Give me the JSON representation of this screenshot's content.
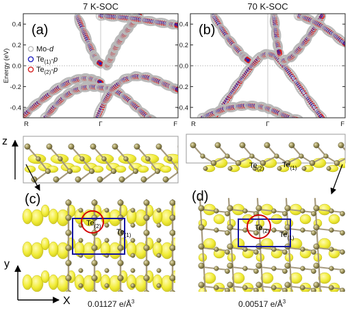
{
  "chart_data": [
    {
      "type": "scatter",
      "title": "7 K-SOC",
      "panel_label": "(a)",
      "ylabel": "Energy (eV)",
      "ylim": [
        -0.5,
        0.5
      ],
      "y_ticks": [
        "0.4",
        "0.2",
        "0.0",
        "-0.2",
        "-0.4"
      ],
      "x_ticks": [
        "R",
        "Γ",
        "F"
      ],
      "legend": [
        {
          "label": "Mo-",
          "label_italic": "d",
          "color": "#b9b9b9"
        },
        {
          "label": "Te",
          "label_sub": "(1)",
          "label_tail": "-",
          "label_italic": "p",
          "color": "#1f1fbf"
        },
        {
          "label": "Te",
          "label_sub": "(2)",
          "label_tail": "-",
          "label_italic": "p",
          "color": "#d62020"
        }
      ],
      "legend_position": "left",
      "bands": [
        {
          "k": [
            -0.3,
            -0.22,
            -0.14,
            -0.08,
            -0.04,
            0.0
          ],
          "E": [
            0.47,
            0.33,
            0.19,
            0.09,
            0.04,
            0.02
          ]
        },
        {
          "k": [
            -1.0,
            -0.85,
            -0.7,
            -0.55,
            -0.4,
            -0.25,
            -0.15,
            -0.06,
            0.0
          ],
          "E": [
            -0.48,
            -0.38,
            -0.29,
            -0.21,
            -0.15,
            -0.12,
            -0.12,
            -0.14,
            -0.16
          ]
        },
        {
          "k": [
            -0.72,
            -0.6,
            -0.48,
            -0.36,
            -0.24,
            -0.12,
            0.0,
            0.12,
            0.24,
            0.36,
            0.48,
            0.6,
            0.72
          ],
          "E": [
            -0.5,
            -0.39,
            -0.3,
            -0.24,
            -0.21,
            -0.2,
            -0.21,
            -0.22,
            -0.26,
            -0.33,
            -0.41,
            -0.49,
            -0.55
          ]
        },
        {
          "k": [
            -0.06,
            0.05,
            0.15,
            0.3,
            0.45,
            0.6,
            0.75,
            0.9,
            1.0
          ],
          "E": [
            -0.52,
            -0.34,
            -0.22,
            -0.13,
            -0.1,
            -0.11,
            -0.15,
            -0.2,
            -0.23
          ]
        },
        {
          "k": [
            0.08,
            0.12,
            0.16,
            0.2,
            0.26,
            0.32,
            0.38,
            0.44,
            0.5
          ],
          "E": [
            0.0,
            0.06,
            0.13,
            0.19,
            0.26,
            0.32,
            0.38,
            0.44,
            0.48
          ]
        },
        {
          "k": [
            0.0,
            0.18,
            0.36,
            0.54,
            0.72,
            0.9,
            1.0
          ],
          "E": [
            0.48,
            0.47,
            0.46,
            0.44,
            0.42,
            0.4,
            0.39
          ]
        }
      ]
    },
    {
      "type": "scatter",
      "title": "70 K-SOC",
      "panel_label": "(b)",
      "ylim": [
        -0.5,
        0.5
      ],
      "y_ticks": [
        "0.4",
        "0.2",
        "0.0",
        "-0.2",
        "-0.4"
      ],
      "x_ticks": [
        "R",
        "Γ",
        "F"
      ],
      "bands": [
        {
          "k": [
            -0.7,
            -0.6,
            -0.5,
            -0.4,
            -0.3,
            -0.25
          ],
          "E": [
            0.48,
            0.36,
            0.25,
            0.16,
            0.08,
            0.05
          ]
        },
        {
          "k": [
            -0.7,
            -0.55,
            -0.4,
            -0.25,
            -0.1,
            0.0,
            0.1,
            0.25,
            0.4,
            0.55,
            0.7
          ],
          "E": [
            -0.5,
            -0.35,
            -0.19,
            -0.04,
            0.09,
            0.12,
            0.09,
            -0.04,
            -0.19,
            -0.35,
            -0.5
          ]
        },
        {
          "k": [
            -0.85,
            -0.7,
            -0.55,
            -0.4,
            -0.25,
            -0.1,
            0.0,
            0.1,
            0.25,
            0.4
          ],
          "E": [
            -0.5,
            -0.45,
            -0.41,
            -0.39,
            -0.38,
            -0.39,
            -0.41,
            -0.44,
            -0.49,
            -0.52
          ]
        },
        {
          "k": [
            0.08,
            0.1,
            0.12,
            0.15
          ],
          "E": [
            0.48,
            0.35,
            0.22,
            0.12
          ]
        },
        {
          "k": [
            0.2,
            0.3,
            0.4,
            0.5,
            0.6,
            0.7
          ],
          "E": [
            0.05,
            0.08,
            0.16,
            0.25,
            0.36,
            0.48
          ]
        },
        {
          "k": [
            0.4,
            0.55,
            0.7,
            0.85,
            1.0
          ],
          "E": [
            0.48,
            0.44,
            0.38,
            0.3,
            0.21
          ]
        }
      ]
    }
  ],
  "structure": {
    "axis_z": "z",
    "axis_y": "y",
    "axis_x": "X",
    "panel_c": "(c)",
    "panel_d": "(d)",
    "te_label": "Te",
    "sub_1": "(1)",
    "sub_2": "(2)",
    "iso_c": "0.01127 e/Å",
    "iso_d": "0.00517 e/Å",
    "iso_power": "3"
  },
  "colors": {
    "mo": "#b9b9b9",
    "te1": "#1f1fbf",
    "te2": "#d62020",
    "density": "#f1ec2c",
    "atom": "#8e8449",
    "cell": "#1414a0",
    "highlight": "#d40000"
  }
}
